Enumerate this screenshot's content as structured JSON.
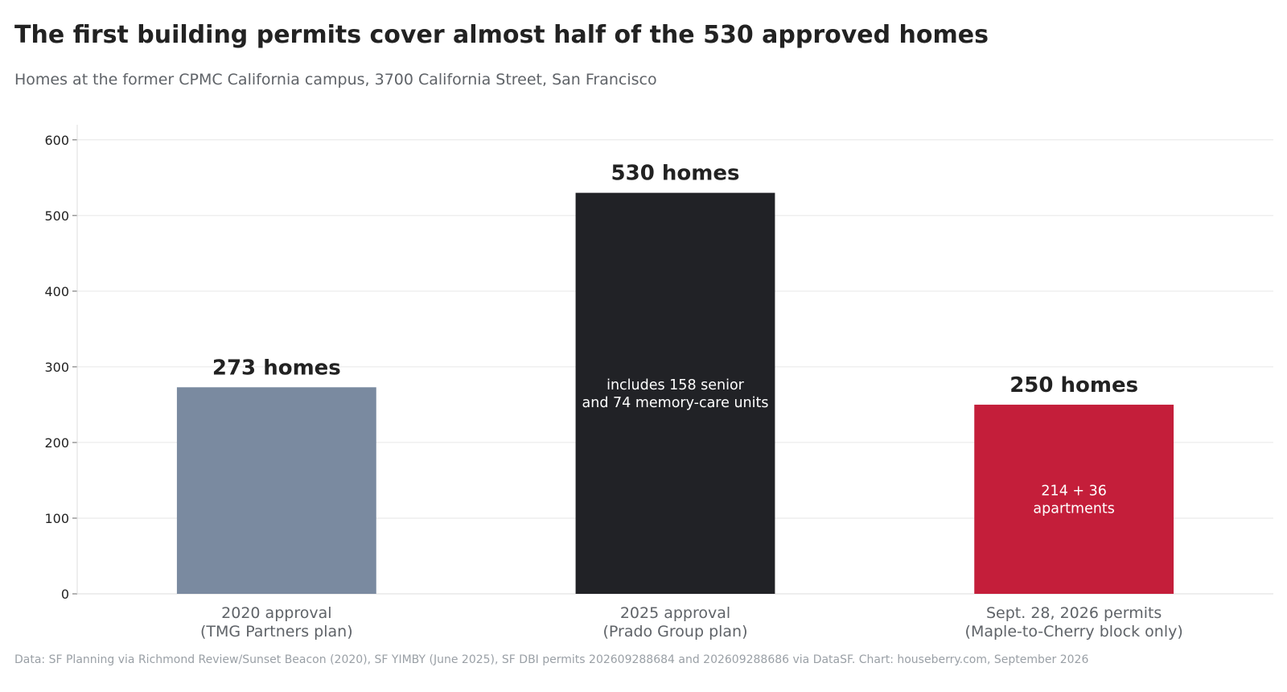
{
  "header": {
    "title": "The first building permits cover almost half of the 530 approved homes",
    "subtitle": "Homes at the former CPMC California campus, 3700 California Street, San Francisco"
  },
  "footer": {
    "source": "Data: SF Planning via Richmond Review/Sunset Beacon (2020), SF YIMBY (June 2025), SF DBI permits 202609288684 and 202609288686 via DataSF. Chart: houseberry.com, September 2026"
  },
  "chart_data": {
    "type": "bar",
    "title": "The first building permits cover almost half of the 530 approved homes",
    "subtitle": "Homes at the former CPMC California campus, 3700 California Street, San Francisco",
    "xlabel": "",
    "ylabel": "",
    "ylim": [
      0,
      620
    ],
    "yticks": [
      0,
      100,
      200,
      300,
      400,
      500,
      600
    ],
    "grid": true,
    "categories": [
      [
        "2020 approval",
        "(TMG Partners plan)"
      ],
      [
        "2025 approval",
        "(Prado Group plan)"
      ],
      [
        "Sept. 28, 2026 permits",
        "(Maple-to-Cherry block only)"
      ]
    ],
    "values": [
      273,
      530,
      250
    ],
    "colors": [
      "#7a8aa0",
      "#212226",
      "#c41e3a"
    ],
    "value_labels": [
      "273 homes",
      "530 homes",
      "250 homes"
    ],
    "inner_labels": [
      [],
      [
        "includes 158 senior",
        "and 74 memory-care units"
      ],
      [
        "214 + 36",
        "apartments"
      ]
    ]
  }
}
